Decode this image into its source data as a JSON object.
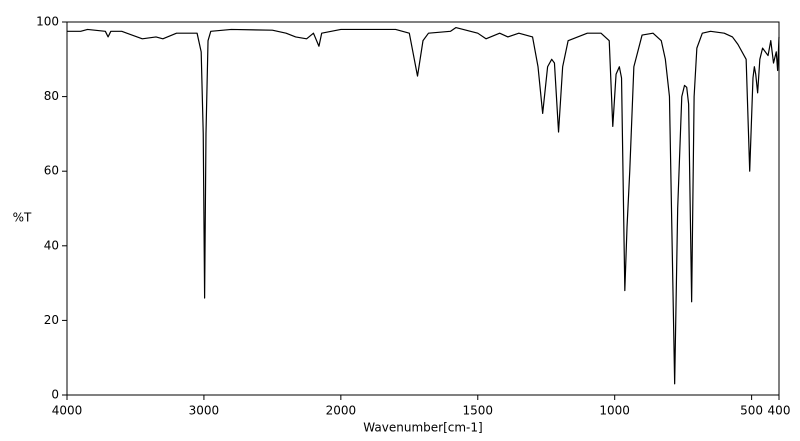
{
  "chart_data": {
    "type": "line",
    "x_label": "Wavenumber[cm-1]",
    "y_label": "%T",
    "xlim": [
      4000,
      400
    ],
    "x_scale_change": {
      "at": 2000,
      "factor": 2
    },
    "xticks": [
      4000,
      3000,
      2000,
      1500,
      1000,
      500,
      400
    ],
    "ylim": [
      0,
      100
    ],
    "yticks": [
      0,
      20,
      40,
      60,
      80,
      100
    ],
    "color": "#000000",
    "x": [
      4000,
      3900,
      3850,
      3720,
      3700,
      3680,
      3600,
      3450,
      3350,
      3300,
      3200,
      3050,
      3020,
      3005,
      2995,
      2985,
      2970,
      2950,
      2800,
      2500,
      2400,
      2330,
      2250,
      2200,
      2160,
      2140,
      2000,
      1800,
      1750,
      1720,
      1700,
      1680,
      1600,
      1580,
      1500,
      1470,
      1420,
      1390,
      1350,
      1300,
      1280,
      1263,
      1245,
      1230,
      1220,
      1205,
      1190,
      1170,
      1100,
      1050,
      1020,
      1007,
      995,
      983,
      975,
      963,
      955,
      945,
      930,
      900,
      860,
      830,
      815,
      800,
      781,
      770,
      755,
      745,
      737,
      730,
      719,
      710,
      700,
      680,
      650,
      600,
      570,
      550,
      520,
      507,
      495,
      490,
      485,
      478,
      470,
      460,
      440,
      430,
      420,
      410,
      405,
      400
    ],
    "values": [
      97.5,
      97.5,
      98,
      97.5,
      96,
      97.5,
      97.5,
      95.5,
      96,
      95.5,
      97,
      97,
      92,
      70,
      26,
      70,
      95,
      97.5,
      98,
      97.8,
      97,
      96,
      95.5,
      97,
      93.5,
      97,
      98,
      98,
      97,
      85.5,
      95,
      97,
      97.5,
      98.5,
      97,
      95.5,
      97,
      96,
      97,
      96,
      88,
      75.5,
      88,
      90,
      89,
      70.5,
      88,
      95,
      97,
      97,
      95,
      72,
      86,
      88,
      85,
      28,
      45,
      60,
      88,
      96.5,
      97,
      95,
      90,
      80,
      3,
      50,
      80,
      83,
      82.5,
      78,
      25,
      80,
      93,
      97,
      97.5,
      97,
      96,
      94,
      90,
      60,
      85,
      88,
      86,
      81,
      90,
      93,
      91,
      95,
      89,
      92,
      87,
      96
    ]
  }
}
